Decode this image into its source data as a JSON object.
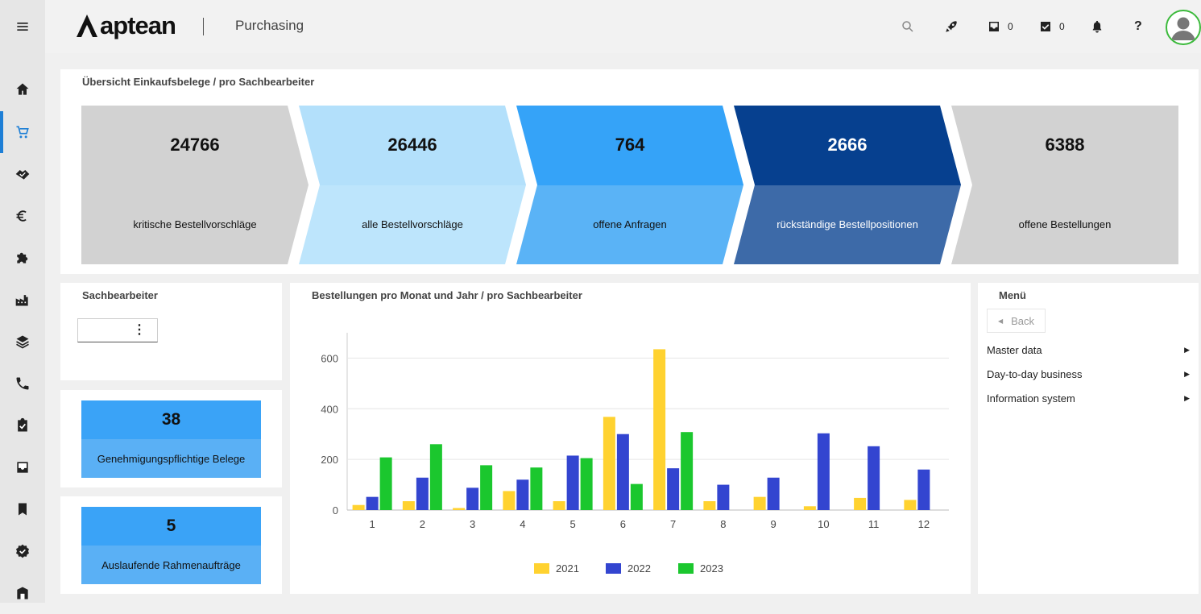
{
  "header": {
    "brand": "aptean",
    "app_title": "Purchasing",
    "inbox_count": "0",
    "tasks_count": "0",
    "help_label": "?"
  },
  "sidebar": {
    "items": [
      {
        "icon": "home-icon"
      },
      {
        "icon": "cart-icon",
        "active": true
      },
      {
        "icon": "handshake-icon"
      },
      {
        "icon": "euro-icon"
      },
      {
        "icon": "puzzle-icon"
      },
      {
        "icon": "factory-icon"
      },
      {
        "icon": "layers-icon"
      },
      {
        "icon": "phone-icon"
      },
      {
        "icon": "clipboard-check-icon"
      },
      {
        "icon": "inbox-icon"
      },
      {
        "icon": "bookmark-icon"
      },
      {
        "icon": "verified-badge-icon"
      },
      {
        "icon": "building-icon"
      }
    ]
  },
  "overview": {
    "title": "Übersicht Einkaufsbelege / pro Sachbearbeiter",
    "steps": [
      {
        "value": "24766",
        "label": "kritische Bestellvorschläge",
        "top_color": "#d2d2d2",
        "bottom_color": "#d2d2d2",
        "text_color": "#111111"
      },
      {
        "value": "26446",
        "label": "alle Bestellvorschläge",
        "top_color": "#b3e0fb",
        "bottom_color": "#bde5fc",
        "text_color": "#111111"
      },
      {
        "value": "764",
        "label": "offene Anfragen",
        "top_color": "#35a3f8",
        "bottom_color": "#5ab3f6",
        "text_color": "#111111"
      },
      {
        "value": "2666",
        "label": "rückständige Bestellpositionen",
        "top_color": "#06408f",
        "bottom_color": "#3d6aa8",
        "text_color": "#ffffff"
      },
      {
        "value": "6388",
        "label": "offene Bestellungen",
        "top_color": "#d2d2d2",
        "bottom_color": "#d2d2d2",
        "text_color": "#111111"
      }
    ]
  },
  "clerk": {
    "title": "Sachbearbeiter",
    "selected": ""
  },
  "kpis": [
    {
      "value": "38",
      "label": "Genehmigungspflichtige Belege"
    },
    {
      "value": "5",
      "label": "Auslaufende Rahmenaufträge"
    }
  ],
  "menu": {
    "title": "Menü",
    "back_label": "Back",
    "items": [
      "Master data",
      "Day-to-day business",
      "Information system"
    ]
  },
  "chart_data": {
    "type": "bar",
    "title": "Bestellungen pro Monat und Jahr / pro Sachbearbeiter",
    "categories": [
      "1",
      "2",
      "3",
      "4",
      "5",
      "6",
      "7",
      "8",
      "9",
      "10",
      "11",
      "12"
    ],
    "series": [
      {
        "name": "2021",
        "color": "#ffd230",
        "values": [
          20,
          35,
          8,
          75,
          35,
          368,
          635,
          35,
          52,
          15,
          48,
          40
        ]
      },
      {
        "name": "2022",
        "color": "#3345d0",
        "values": [
          52,
          128,
          88,
          120,
          215,
          300,
          165,
          100,
          128,
          303,
          252,
          160
        ]
      },
      {
        "name": "2023",
        "color": "#1bc72e",
        "values": [
          208,
          260,
          177,
          168,
          205,
          103,
          308,
          0,
          0,
          0,
          0,
          0
        ]
      }
    ],
    "ylim": [
      0,
      700
    ],
    "yticks": [
      0,
      200,
      400,
      600
    ],
    "grid": true,
    "legend": "bottom"
  }
}
